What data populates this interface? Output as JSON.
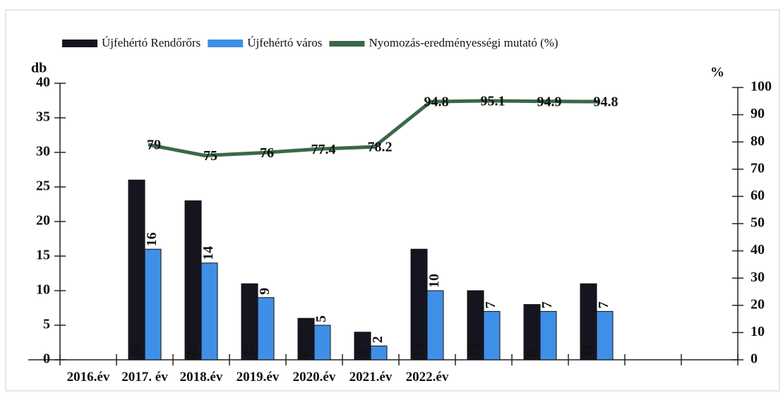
{
  "chart_data": {
    "type": "bar",
    "categories": [
      "2016.év",
      "2017. év",
      "2018.év",
      "2019.év",
      "2020.év",
      "2021.év",
      "2022.év",
      null,
      null,
      null,
      null,
      null
    ],
    "series": [
      {
        "name": "Újfehértó Rendőrőrs",
        "color": "#15151f",
        "values": [
          null,
          26,
          23,
          11,
          6,
          4,
          16,
          10,
          8,
          11,
          null,
          null
        ]
      },
      {
        "name": "Újfehértó város",
        "color": "#3f8fe6",
        "values": [
          null,
          16,
          14,
          9,
          5,
          2,
          10,
          7,
          7,
          7,
          null,
          null
        ]
      },
      {
        "name": "Nyomozás-eredményességi mutató (%)",
        "color": "#3a6848",
        "type": "line",
        "axis": "y2",
        "values": [
          null,
          79,
          75,
          76,
          77.4,
          78.2,
          94.8,
          95.1,
          94.9,
          94.8,
          null,
          null
        ]
      }
    ],
    "ylabel": "db",
    "y2label": "%",
    "ylim": [
      0,
      40
    ],
    "yticks": [
      0,
      5,
      10,
      15,
      20,
      25,
      30,
      35,
      40
    ],
    "y2lim": [
      0,
      100
    ],
    "y2ticks": [
      0,
      10,
      20,
      30,
      40,
      50,
      60,
      70,
      80,
      90,
      100
    ],
    "legend": "top"
  }
}
